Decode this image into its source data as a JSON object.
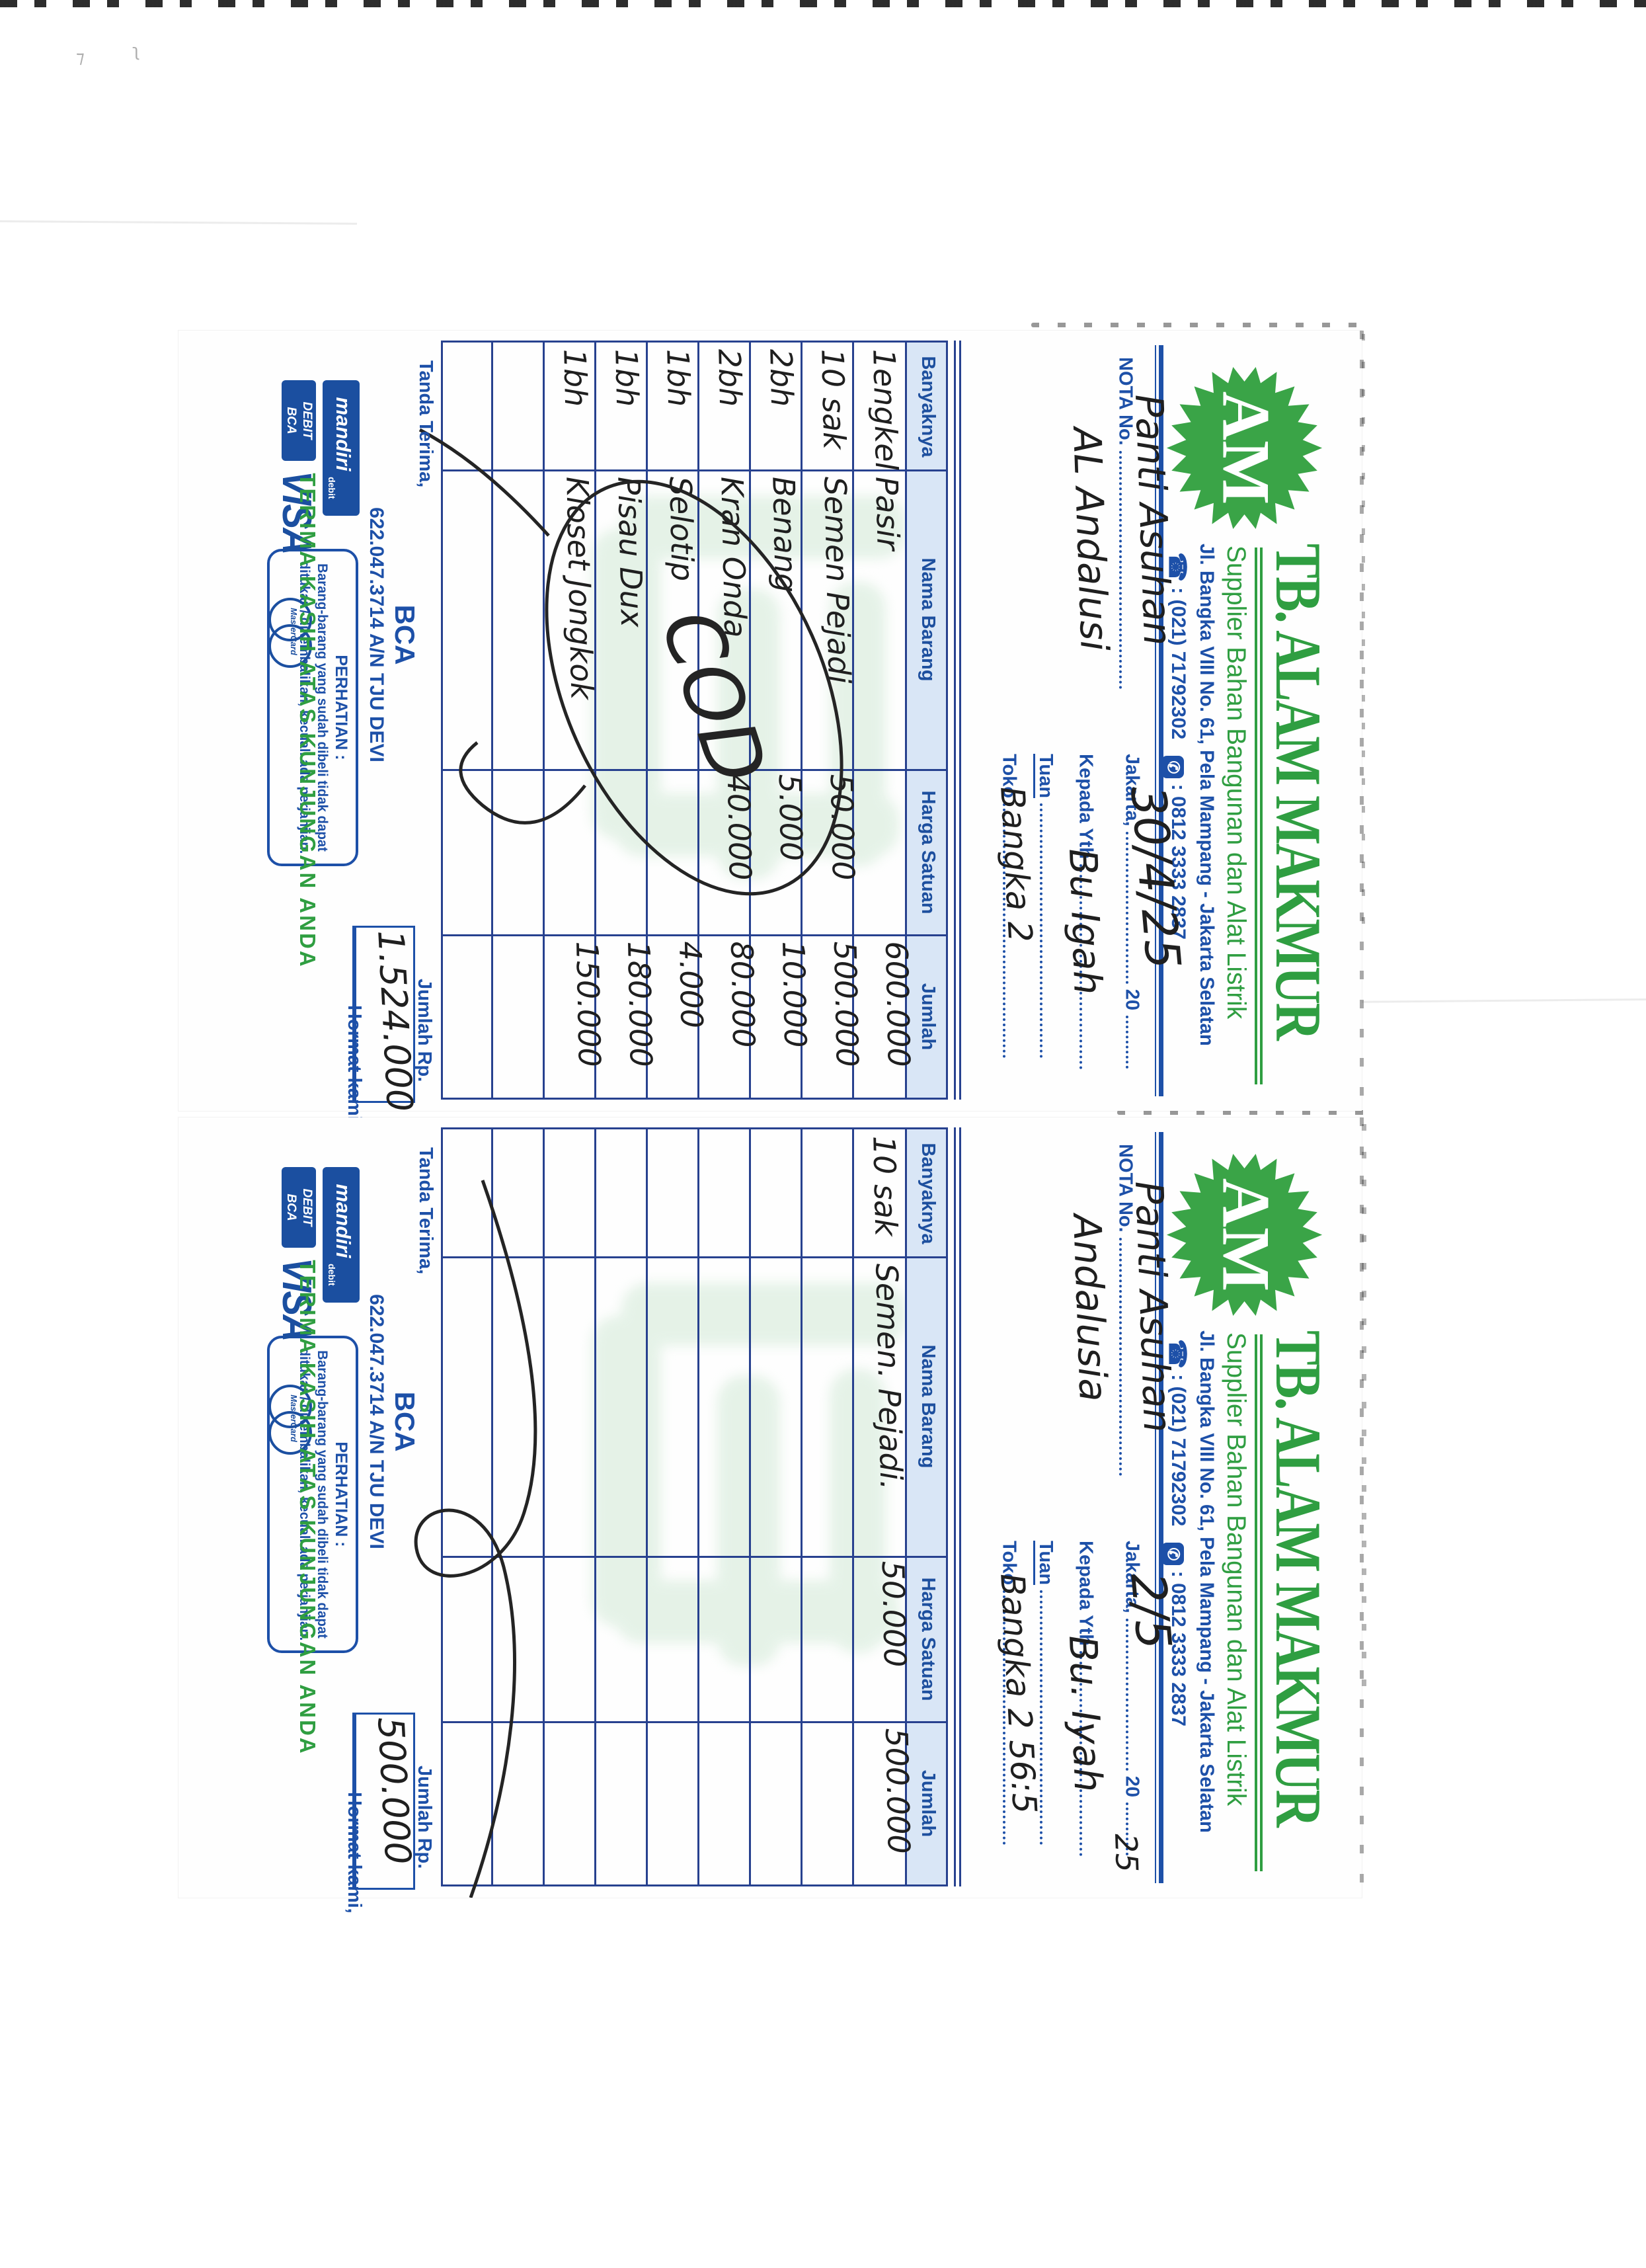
{
  "labels": {
    "store_name": "TB. ALAM MAKMUR",
    "tagline": "Supplier Bahan Bangunan dan Alat Listrik",
    "address": "Jl. Bangka VIII No. 61, Pela Mampang - Jakarta Selatan",
    "phone_office": ": (021) 71792302",
    "phone_mobile": ": 0812 3333 2837",
    "logo_text": "AM",
    "nota_no": "NOTA No.",
    "city": "Jakarta,",
    "year_prefix": "20",
    "kepada": "Kepada Yth",
    "tuan": "Tuan",
    "toko": "Toko",
    "col_qty": "Banyaknya",
    "col_name": "Nama Barang",
    "col_price": "Harga Satuan",
    "col_total": "Jumlah",
    "tanda_terima": "Tanda Terima,",
    "jumlah_rp": "Jumlah Rp.",
    "hormat_kami": "Hormat kami,",
    "bank_name": "BCA",
    "bank_account": "622.047.3714 A/N TJU DEVI",
    "perhatian_title": "PERHATIAN :",
    "perhatian_line1": "Barang-barang yang sudah dibeli tidak dapat",
    "perhatian_line2": "ditukar / dikembalikan, kecuali ada perjanjian.",
    "thanks": "TERIMA KASIH ATAS KUNJUNGAN ANDA",
    "visa": "VISA",
    "mandiri": "mandiri",
    "mandiri_sub": "debit",
    "debit": "DEBIT",
    "debit_bank": "BCA",
    "mastercard": "MasterCard"
  },
  "icons": {
    "fax": "☎",
    "mobile": "✆"
  },
  "colors": {
    "brand_green": "#2f9e41",
    "form_blue": "#1d50a8",
    "table_line": "#27418f",
    "header_cell_bg": "#d9e6f6",
    "handwriting": "#1f1f1f",
    "watermark_green": "#cde7d2"
  },
  "receipts": [
    {
      "customer_line1": "Panti Asuhan",
      "customer_line2": "AL Andalusi",
      "date_hw": "30/4/25",
      "year_hw": "",
      "kepada_hw": "Bu Igah",
      "toko_hw": "Bangka 2",
      "items": [
        {
          "qty": "1engkel",
          "name": "Pasir",
          "price": "",
          "total": "600.000"
        },
        {
          "qty": "10 sak",
          "name": "Semen Pejadi",
          "price": "50.000",
          "total": "500.000"
        },
        {
          "qty": "2bh",
          "name": "Benang",
          "price": "5.000",
          "total": "10.000"
        },
        {
          "qty": "2bh",
          "name": "Kran Onda",
          "price": "40.000",
          "total": "80.000"
        },
        {
          "qty": "1bh",
          "name": "Selotip",
          "price": "",
          "total": "4.000"
        },
        {
          "qty": "1bh",
          "name": "Pisau Dux",
          "price": "",
          "total": "180.000"
        },
        {
          "qty": "1bh",
          "name": "Kloset Jongkok",
          "price": "",
          "total": "150.000"
        }
      ],
      "total_hw": "1.524.000",
      "note_hw": "COD"
    },
    {
      "customer_line1": "Panti Asuhan",
      "customer_line2": "Andalusia",
      "date_hw": "2/5",
      "year_hw": "25",
      "kepada_hw": "Bu. Iyah",
      "toko_hw": "Bangka 2 56:5",
      "items": [
        {
          "qty": "10 sak",
          "name": "Semen. Pejadi.",
          "price": "50.000",
          "total": "500.000"
        }
      ],
      "total_hw": "500.000",
      "note_hw": ""
    }
  ]
}
